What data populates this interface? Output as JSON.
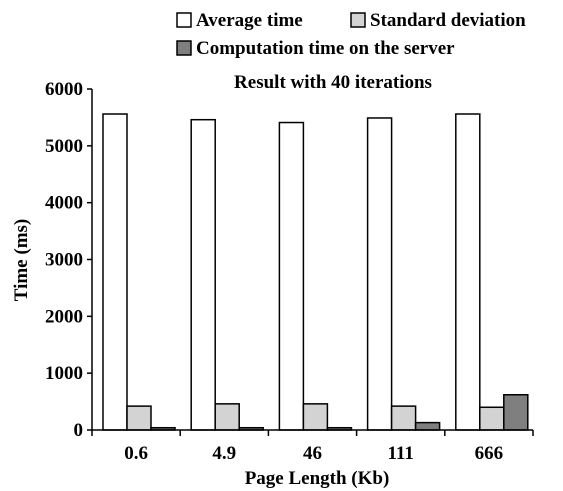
{
  "chart_data": {
    "type": "bar",
    "title": "Result with 40 iterations",
    "xlabel": "Page Length (Kb)",
    "ylabel": "Time (ms)",
    "categories": [
      "0.6",
      "4.9",
      "46",
      "111",
      "666"
    ],
    "ylim": [
      0,
      6000
    ],
    "yticks": [
      "0",
      "1000",
      "2000",
      "3000",
      "4000",
      "5000",
      "6000"
    ],
    "grid": false,
    "legend_position": "top",
    "series": [
      {
        "name": "Average time",
        "color": "#ffffff",
        "values": [
          5560,
          5460,
          5410,
          5490,
          5560
        ]
      },
      {
        "name": "Standard deviation",
        "color": "#d3d3d3",
        "values": [
          420,
          460,
          460,
          420,
          400
        ]
      },
      {
        "name": "Computation time on the server",
        "color": "#7f7f7f",
        "values": [
          40,
          40,
          40,
          130,
          620
        ]
      }
    ]
  }
}
